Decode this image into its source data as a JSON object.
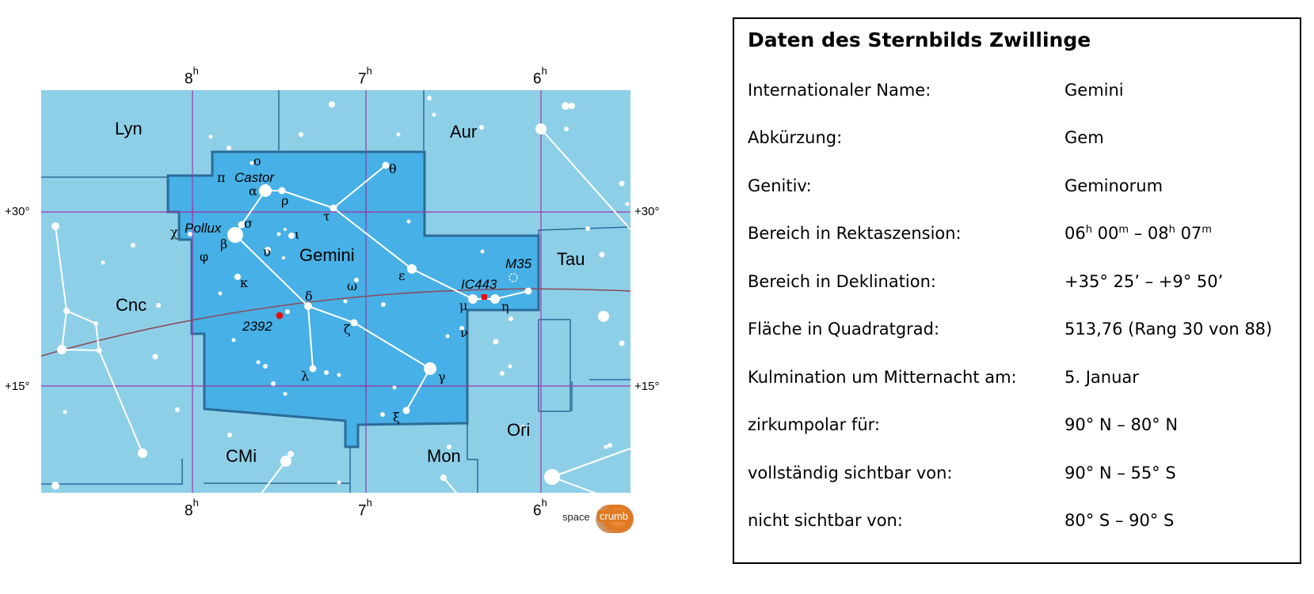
{
  "map": {
    "ra_top": [
      {
        "h": "8",
        "unit": "h"
      },
      {
        "h": "7",
        "unit": "h"
      },
      {
        "h": "6",
        "unit": "h"
      }
    ],
    "ra_bottom": [
      {
        "h": "8",
        "unit": "h"
      },
      {
        "h": "7",
        "unit": "h"
      },
      {
        "h": "6",
        "unit": "h"
      }
    ],
    "dec_left": [
      "+30°",
      "+15°"
    ],
    "dec_right": [
      "+30°",
      "+15°"
    ],
    "constellations": {
      "lyn": "Lyn",
      "aur": "Aur",
      "tau": "Tau",
      "cnc": "Cnc",
      "gemini": "Gemini",
      "ori": "Ori",
      "cmi": "CMi",
      "mon": "Mon"
    },
    "star_names": {
      "castor": "Castor",
      "pollux": "Pollux"
    },
    "objects": {
      "ic443": "IC443",
      "m35": "M35",
      "ngc2392": "2392"
    },
    "greek": {
      "omicron": "ο",
      "pi": "π",
      "alpha": "α",
      "rho": "ρ",
      "tau": "τ",
      "theta": "θ",
      "chi": "χ",
      "sigma": "σ",
      "beta": "β",
      "phi": "φ",
      "upsilon": "υ",
      "iota": "ι",
      "kappa": "κ",
      "omega": "ω",
      "epsilon": "ε",
      "delta": "δ",
      "zeta": "ζ",
      "mu": "μ",
      "eta": "η",
      "nu": "ν",
      "lambda": "λ",
      "gamma": "γ",
      "xi": "ξ"
    },
    "logo": {
      "left": "space",
      "right": "crumb"
    },
    "colors": {
      "sky": "#8ecfe8",
      "constellation_fill": "#47b0e6",
      "border": "#2a6c98",
      "grid": "#9b3aa8",
      "ecliptic": "#8a4a5a",
      "star": "#ffffff",
      "red_object": "#e01010"
    }
  },
  "info": {
    "title": "Daten des Sternbilds Zwillinge",
    "rows": [
      {
        "label": "Internationaler  Name:",
        "value": "Gemini"
      },
      {
        "label": "Abkürzung:",
        "value": "Gem"
      },
      {
        "label": "Genitiv:",
        "value": "Geminorum"
      },
      {
        "label": "Bereich in Rektaszension:",
        "value_parts": [
          "06",
          "h",
          " 00",
          "m",
          " – 08",
          "h",
          " 07",
          "m"
        ]
      },
      {
        "label": "Bereich in Deklination:",
        "value": "+35° 25’ – +9° 50’"
      },
      {
        "label": "Fläche in Quadratgrad:",
        "value": "513,76 (Rang 30 von 88)"
      },
      {
        "label": "Kulmination um Mitternacht  am:",
        "value": "5. Januar"
      },
      {
        "label": "zirkumpolar für:",
        "value": "90° N – 80° N"
      },
      {
        "label": "vollständig sichtbar von:",
        "value": "90° N – 55° S"
      },
      {
        "label": "nicht sichtbar von:",
        "value": "80° S – 90° S"
      }
    ]
  }
}
